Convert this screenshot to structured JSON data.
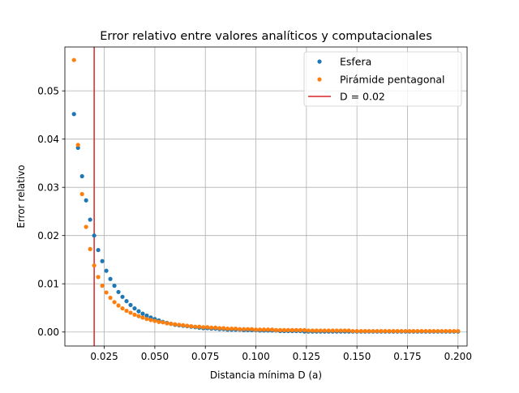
{
  "chart_data": {
    "type": "scatter",
    "title": "Error relativo entre valores analíticos y computacionales",
    "xlabel": "Distancia mínima D (a)",
    "ylabel": "Error relativo",
    "xlim": [
      0.0055,
      0.2045
    ],
    "ylim": [
      -0.0029,
      0.0591
    ],
    "xticks": [
      "0.025",
      "0.050",
      "0.075",
      "0.100",
      "0.125",
      "0.150",
      "0.175",
      "0.200"
    ],
    "yticks": [
      "0.00",
      "0.01",
      "0.02",
      "0.03",
      "0.04",
      "0.05"
    ],
    "grid": true,
    "legend_position": "top-right",
    "series": [
      {
        "name": "Esfera",
        "color": "#1f77b4",
        "x_start": 0.01,
        "x_step": 0.002,
        "x_end": 0.2,
        "values": [
          0.0452,
          0.0382,
          0.0323,
          0.0273,
          0.0233,
          0.02,
          0.017,
          0.0147,
          0.0127,
          0.011,
          0.0096,
          0.0083,
          0.0073,
          0.0064,
          0.0056,
          0.0049,
          0.0043,
          0.0038,
          0.0034,
          0.003,
          0.0027,
          0.0024,
          0.0021,
          0.0019,
          0.0017,
          0.0015,
          0.0014,
          0.0013,
          0.0012,
          0.0011,
          0.001,
          0.0009,
          0.0008,
          0.0008,
          0.0007,
          0.0007,
          0.0006,
          0.0006,
          0.0005,
          0.0005,
          0.0005,
          0.0005,
          0.0004,
          0.0004,
          0.0004,
          0.0004,
          0.0003,
          0.0003,
          0.0003,
          0.0003,
          0.0003,
          0.0002,
          0.0002,
          0.0002,
          0.0002,
          0.0002,
          0.0002,
          0.0001,
          0.0001,
          0.0001,
          0.0001,
          0.0001,
          0.0001,
          0.0001,
          0.0001,
          0.0001,
          0.0001,
          0.0001,
          0.0001,
          0.0001,
          0.0001,
          0.0001,
          0.0001,
          0.0001,
          0.0001,
          0.0001,
          0.0001,
          0.0001,
          0.0001,
          0.0001,
          0.0001,
          0.0001,
          0.0001,
          0.0001,
          0.0001,
          0.0001,
          0.0001,
          0.0001,
          0.0001,
          0.0001,
          0.0001,
          0.0001,
          0.0001,
          0.0001,
          0.0001,
          0.0001
        ]
      },
      {
        "name": "Pirámide pentagonal",
        "color": "#ff7f0e",
        "x_start": 0.01,
        "x_step": 0.002,
        "x_end": 0.2,
        "values": [
          0.0564,
          0.0388,
          0.0286,
          0.0218,
          0.0172,
          0.0138,
          0.0114,
          0.0096,
          0.0082,
          0.0071,
          0.0062,
          0.0055,
          0.0049,
          0.0044,
          0.004,
          0.0036,
          0.0033,
          0.003,
          0.0027,
          0.0025,
          0.0023,
          0.0021,
          0.002,
          0.0018,
          0.0017,
          0.0016,
          0.0015,
          0.0014,
          0.0013,
          0.0012,
          0.0011,
          0.0011,
          0.001,
          0.001,
          0.0009,
          0.0009,
          0.0008,
          0.0008,
          0.0007,
          0.0007,
          0.0007,
          0.0006,
          0.0006,
          0.0006,
          0.0006,
          0.0005,
          0.0005,
          0.0005,
          0.0005,
          0.0005,
          0.0004,
          0.0004,
          0.0004,
          0.0004,
          0.0004,
          0.0004,
          0.0004,
          0.0004,
          0.0003,
          0.0003,
          0.0003,
          0.0003,
          0.0003,
          0.0003,
          0.0003,
          0.0003,
          0.0003,
          0.0003,
          0.0003,
          0.0002,
          0.0002,
          0.0002,
          0.0002,
          0.0002,
          0.0002,
          0.0002,
          0.0002,
          0.0002,
          0.0002,
          0.0002,
          0.0002,
          0.0002,
          0.0002,
          0.0002,
          0.0002,
          0.0002,
          0.0002,
          0.0002,
          0.0002,
          0.0002,
          0.0002,
          0.0002,
          0.0002,
          0.0002,
          0.0002,
          0.0002
        ]
      }
    ],
    "vline": {
      "name": "D = 0.02",
      "x": 0.02,
      "color": "#d62728"
    }
  }
}
